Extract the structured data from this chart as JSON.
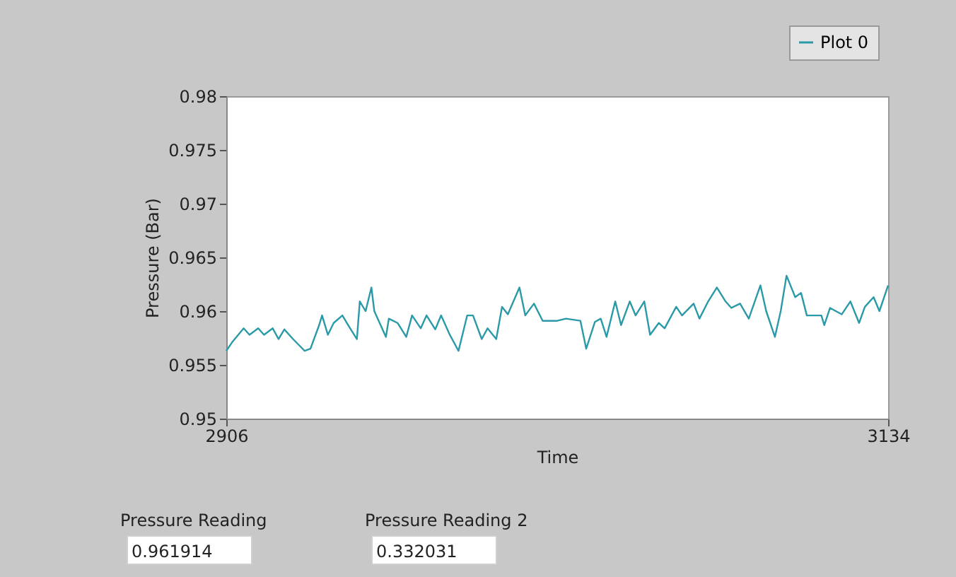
{
  "chart_data": {
    "type": "line",
    "xlabel": "Time",
    "ylabel": "Pressure (Bar)",
    "xlim": [
      2906,
      3134
    ],
    "xticks": [
      2906,
      3134
    ],
    "ylim": [
      0.95,
      0.98
    ],
    "yticks": [
      0.95,
      0.955,
      0.96,
      0.965,
      0.97,
      0.975,
      0.98
    ],
    "grid": false,
    "legend": "top right",
    "line_style": "solid",
    "marker": "none",
    "annotations": [
      "Pressure Reading",
      "0.961914",
      "Pressure Reading 2",
      "0.332031"
    ],
    "series": [
      {
        "name": "Plot 0",
        "color": "#2a9aa8",
        "x": [
          2906,
          2908,
          2912,
          2914,
          2917,
          2919,
          2922,
          2924,
          2926,
          2929,
          2933,
          2935,
          2938,
          2939,
          2941,
          2943,
          2946,
          2948,
          2951,
          2952,
          2954,
          2956,
          2957,
          2961,
          2962,
          2965,
          2968,
          2970,
          2973,
          2975,
          2978,
          2980,
          2983,
          2986,
          2989,
          2991,
          2994,
          2996,
          2999,
          3001,
          3003,
          3007,
          3009,
          3012,
          3015,
          3020,
          3023,
          3028,
          3030,
          3033,
          3035,
          3037,
          3040,
          3042,
          3045,
          3047,
          3050,
          3052,
          3055,
          3057,
          3061,
          3063,
          3067,
          3069,
          3072,
          3075,
          3078,
          3080,
          3083,
          3086,
          3090,
          3092,
          3095,
          3097,
          3099,
          3102,
          3104,
          3106,
          3111,
          3112,
          3114,
          3118,
          3121,
          3124,
          3126,
          3129,
          3131,
          3134
        ],
        "values": [
          0.9563,
          0.9571,
          0.9584,
          0.9578,
          0.9584,
          0.9578,
          0.9584,
          0.9574,
          0.9583,
          0.9574,
          0.9563,
          0.9565,
          0.9587,
          0.9596,
          0.9578,
          0.9589,
          0.9596,
          0.9587,
          0.9574,
          0.9609,
          0.96,
          0.9622,
          0.96,
          0.9576,
          0.9593,
          0.9589,
          0.9576,
          0.9596,
          0.9584,
          0.9596,
          0.9583,
          0.9596,
          0.9578,
          0.9563,
          0.9596,
          0.9596,
          0.9574,
          0.9584,
          0.9574,
          0.9604,
          0.9597,
          0.9622,
          0.9596,
          0.9607,
          0.9591,
          0.9591,
          0.9593,
          0.9591,
          0.9565,
          0.959,
          0.9593,
          0.9576,
          0.9609,
          0.9587,
          0.9609,
          0.9596,
          0.9609,
          0.9578,
          0.9589,
          0.9584,
          0.9604,
          0.9596,
          0.9607,
          0.9593,
          0.9609,
          0.9622,
          0.9609,
          0.9603,
          0.9607,
          0.9593,
          0.9624,
          0.96,
          0.9576,
          0.96,
          0.9633,
          0.9613,
          0.9617,
          0.9596,
          0.9596,
          0.9587,
          0.9603,
          0.9597,
          0.9609,
          0.9589,
          0.9604,
          0.9613,
          0.96,
          0.9624
        ]
      }
    ]
  }
}
